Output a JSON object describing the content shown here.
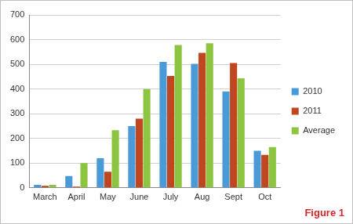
{
  "chart_data": {
    "type": "bar",
    "categories": [
      "March",
      "April",
      "May",
      "June",
      "July",
      "Aug",
      "Sept",
      "Oct"
    ],
    "series": [
      {
        "name": "2010",
        "color": "#4a9ad8",
        "values": [
          12,
          48,
          120,
          250,
          510,
          502,
          390,
          150
        ]
      },
      {
        "name": "2011",
        "color": "#c0461f",
        "values": [
          8,
          5,
          65,
          280,
          453,
          546,
          505,
          133
        ]
      },
      {
        "name": "Average",
        "color": "#8dc541",
        "values": [
          12,
          100,
          233,
          400,
          578,
          585,
          443,
          165
        ]
      }
    ],
    "ylim": [
      0,
      700
    ],
    "yticks": [
      0,
      100,
      200,
      300,
      400,
      500,
      600,
      700
    ],
    "grid": true,
    "legend": "right",
    "annotations": [
      "Figure 1"
    ]
  }
}
